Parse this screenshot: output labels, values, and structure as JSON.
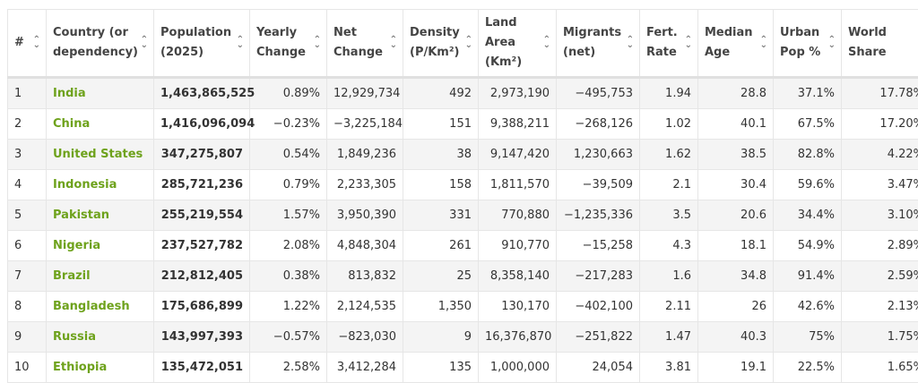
{
  "headers": [
    "#",
    "Country (or dependency)",
    "Population (2025)",
    "Yearly Change",
    "Net Change",
    "Density (P/Km²)",
    "Land Area (Km²)",
    "Migrants (net)",
    "Fert. Rate",
    "Median Age",
    "Urban Pop %",
    "World Share"
  ],
  "accent_color": "#6ea21c",
  "rows": [
    [
      "1",
      "India",
      "1,463,865,525",
      "0.89%",
      "12,929,734",
      "492",
      "2,973,190",
      "−495,753",
      "1.94",
      "28.8",
      "37.1%",
      "17.78%"
    ],
    [
      "2",
      "China",
      "1,416,096,094",
      "−0.23%",
      "−3,225,184",
      "151",
      "9,388,211",
      "−268,126",
      "1.02",
      "40.1",
      "67.5%",
      "17.20%"
    ],
    [
      "3",
      "United States",
      "347,275,807",
      "0.54%",
      "1,849,236",
      "38",
      "9,147,420",
      "1,230,663",
      "1.62",
      "38.5",
      "82.8%",
      "4.22%"
    ],
    [
      "4",
      "Indonesia",
      "285,721,236",
      "0.79%",
      "2,233,305",
      "158",
      "1,811,570",
      "−39,509",
      "2.1",
      "30.4",
      "59.6%",
      "3.47%"
    ],
    [
      "5",
      "Pakistan",
      "255,219,554",
      "1.57%",
      "3,950,390",
      "331",
      "770,880",
      "−1,235,336",
      "3.5",
      "20.6",
      "34.4%",
      "3.10%"
    ],
    [
      "6",
      "Nigeria",
      "237,527,782",
      "2.08%",
      "4,848,304",
      "261",
      "910,770",
      "−15,258",
      "4.3",
      "18.1",
      "54.9%",
      "2.89%"
    ],
    [
      "7",
      "Brazil",
      "212,812,405",
      "0.38%",
      "813,832",
      "25",
      "8,358,140",
      "−217,283",
      "1.6",
      "34.8",
      "91.4%",
      "2.59%"
    ],
    [
      "8",
      "Bangladesh",
      "175,686,899",
      "1.22%",
      "2,124,535",
      "1,350",
      "130,170",
      "−402,100",
      "2.11",
      "26",
      "42.6%",
      "2.13%"
    ],
    [
      "9",
      "Russia",
      "143,997,393",
      "−0.57%",
      "−823,030",
      "9",
      "16,376,870",
      "−251,822",
      "1.47",
      "40.3",
      "75%",
      "1.75%"
    ],
    [
      "10",
      "Ethiopia",
      "135,472,051",
      "2.58%",
      "3,412,284",
      "135",
      "1,000,000",
      "24,054",
      "3.81",
      "19.1",
      "22.5%",
      "1.65%"
    ]
  ]
}
